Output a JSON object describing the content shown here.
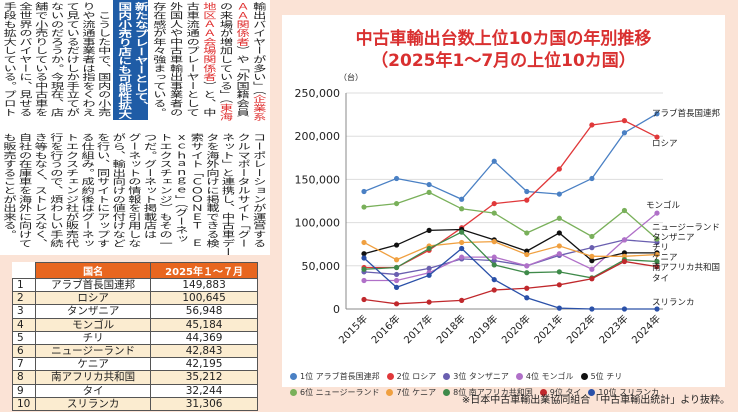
{
  "article": {
    "top_right": [
      [
        {
          "t": "輸出バイヤーが多い」（"
        },
        {
          "t": "企業系",
          "red": true
        }
      ],
      [
        {
          "t": "ＡＡ関係者",
          "red": true
        },
        {
          "t": "）や「外国籍会員"
        }
      ],
      [
        {
          "t": "の来場が増加している」（"
        },
        {
          "t": "東海",
          "red": true
        }
      ],
      [
        {
          "t": "地区ＡＡ会場関係者",
          "red": true
        },
        {
          "t": "）と、中"
        }
      ],
      [
        {
          "t": "古車流通のプレーヤーとして"
        }
      ],
      [
        {
          "t": "外国人や中古車輸出事業者の"
        }
      ],
      [
        {
          "t": "存在感が年々強まっている。"
        }
      ]
    ],
    "headline": [
      "新たなプレーヤーとして、",
      "国内小売り店にも可能性拡大"
    ],
    "top_left": [
      [
        {
          "t": "　こうした中で、国内の小売"
        }
      ],
      [
        {
          "t": "りや流通事業者は指をくわえ"
        }
      ],
      [
        {
          "t": "て見ているだけしか手立てが"
        }
      ],
      [
        {
          "t": "ないのだろうか。今現在、店"
        }
      ],
      [
        {
          "t": "舗で小売りしている中古車を"
        }
      ],
      [
        {
          "t": "全世界のバイヤーに、見せる"
        }
      ],
      [
        {
          "t": "手段も拡大している。プロト"
        }
      ]
    ],
    "bottom": [
      [
        {
          "t": "コーポレーションが運営する"
        }
      ],
      [
        {
          "t": "クルマポータルサイト「グー"
        }
      ],
      [
        {
          "t": "ネット」と連携し、中古車デー"
        }
      ],
      [
        {
          "t": "タを海外向けに掲載できる検"
        }
      ],
      [
        {
          "t": "索サイト「ＣＯＯＮＥＴ　Ｅ"
        }
      ],
      [
        {
          "t": "ｘｃｈａｎｇｅ」（グーネッ"
        }
      ],
      [
        {
          "t": "トエクスチェンジ）もその一"
        }
      ],
      [
        {
          "t": "つだ。グーネット掲載店は"
        }
      ],
      [
        {
          "t": "グーネットの情報を引用しな"
        }
      ],
      [
        {
          "t": "がら、輸出向けの値付けなど"
        }
      ],
      [
        {
          "t": "を行い、同サイトにアップす"
        }
      ],
      [
        {
          "t": "る仕組み。成約後はグーネッ"
        }
      ],
      [
        {
          "t": "トエクスチェンジ社が販売代"
        }
      ],
      [
        {
          "t": "行を行うので、煩わしい手続"
        }
      ],
      [
        {
          "t": "き等もなく、ストレスなく、"
        }
      ],
      [
        {
          "t": "自社の在庫車を海外に向けて"
        }
      ],
      [
        {
          "t": "も販売することが出来る。"
        }
      ]
    ]
  },
  "table": {
    "headers": [
      "国名",
      "2025年１～７月"
    ],
    "rows": [
      [
        "1",
        "アラブ首長国連邦",
        "149,883"
      ],
      [
        "2",
        "ロシア",
        "100,645"
      ],
      [
        "3",
        "タンザニア",
        "56,948"
      ],
      [
        "4",
        "モンゴル",
        "45,184"
      ],
      [
        "5",
        "チリ",
        "44,369"
      ],
      [
        "6",
        "ニュージーランド",
        "42,843"
      ],
      [
        "7",
        "ケニア",
        "42,195"
      ],
      [
        "8",
        "南アフリカ共和国",
        "35,212"
      ],
      [
        "9",
        "タイ",
        "32,244"
      ],
      [
        "10",
        "スリランカ",
        "31,306"
      ]
    ]
  },
  "chart_data": {
    "type": "line",
    "title": "中古車輸出台数上位10カ国の年別推移",
    "subtitle": "（2025年1～7月の上位10カ国）",
    "ylabel": "（台）",
    "ylim": [
      0,
      250000
    ],
    "yticks": [
      "0",
      "50,000",
      "100,000",
      "150,000",
      "200,000",
      "250,000"
    ],
    "categories": [
      "2015年",
      "2016年",
      "2017年",
      "2018年",
      "2019年",
      "2020年",
      "2021年",
      "2022年",
      "2023年",
      "2024年"
    ],
    "grid": true,
    "legend_position": "bottom",
    "series": [
      {
        "name": "アラブ首長国連邦",
        "legend": "1位 アラブ首長国連邦",
        "color": "#4a80c4",
        "values": [
          136000,
          151000,
          144000,
          127000,
          171000,
          136000,
          133000,
          151000,
          204000,
          226000
        ]
      },
      {
        "name": "ロシア",
        "legend": "2位 ロシア",
        "color": "#e0383a",
        "values": [
          48000,
          48000,
          68000,
          94000,
          122000,
          126000,
          162000,
          213000,
          218000,
          199000
        ]
      },
      {
        "name": "タンザニア",
        "legend": "3位 タンザニア",
        "color": "#6a5fb0",
        "values": [
          43000,
          40000,
          47000,
          58000,
          56000,
          50000,
          62000,
          71000,
          80000,
          77000
        ]
      },
      {
        "name": "モンゴル",
        "legend": "4位 モンゴル",
        "color": "#b070c8",
        "values": [
          33000,
          33000,
          42000,
          60000,
          60000,
          50000,
          64000,
          46000,
          80000,
          111000
        ]
      },
      {
        "name": "チリ",
        "legend": "5位 チリ",
        "color": "#111111",
        "values": [
          64000,
          74000,
          91000,
          92000,
          80000,
          67000,
          88000,
          56000,
          65000,
          65000
        ]
      },
      {
        "name": "ニュージーランド",
        "legend": "6位 ニュージーランド",
        "color": "#79b05a",
        "values": [
          118000,
          122000,
          135000,
          116000,
          111000,
          88000,
          105000,
          84000,
          114000,
          81000
        ]
      },
      {
        "name": "ケニア",
        "legend": "7位 ケニア",
        "color": "#f0a040",
        "values": [
          77000,
          57000,
          73000,
          77000,
          78000,
          63000,
          73000,
          61000,
          61000,
          63000
        ]
      },
      {
        "name": "南アフリカ共和国",
        "legend": "8位 南アフリカ共和国",
        "color": "#3f8a4a",
        "values": [
          46000,
          48000,
          70000,
          89000,
          51000,
          42000,
          43000,
          36000,
          57000,
          55000
        ]
      },
      {
        "name": "タイ",
        "legend": "9位 タイ",
        "color": "#c0282c",
        "values": [
          11000,
          6000,
          8000,
          10000,
          22000,
          24000,
          28000,
          35000,
          55000,
          49000
        ]
      },
      {
        "name": "スリランカ",
        "legend": "10位 スリランカ",
        "color": "#2a50a8",
        "values": [
          59000,
          25000,
          39000,
          70000,
          34000,
          13000,
          1000,
          0,
          0,
          0
        ]
      }
    ],
    "end_labels": [
      {
        "text": "アラブ首長国連邦"
      },
      {
        "text": "ロシア"
      },
      {
        "text": "モンゴル"
      },
      {
        "text": "ニュージーランド"
      },
      {
        "text": "タンザニア"
      },
      {
        "text": "チリ"
      },
      {
        "text": "ケニア"
      },
      {
        "text": "南アフリカ共和国"
      },
      {
        "text": "タイ"
      },
      {
        "text": "スリランカ"
      }
    ]
  },
  "footnote": "※日本中古車輸出業協同組合「中古車輸出統計」より抜粋。"
}
